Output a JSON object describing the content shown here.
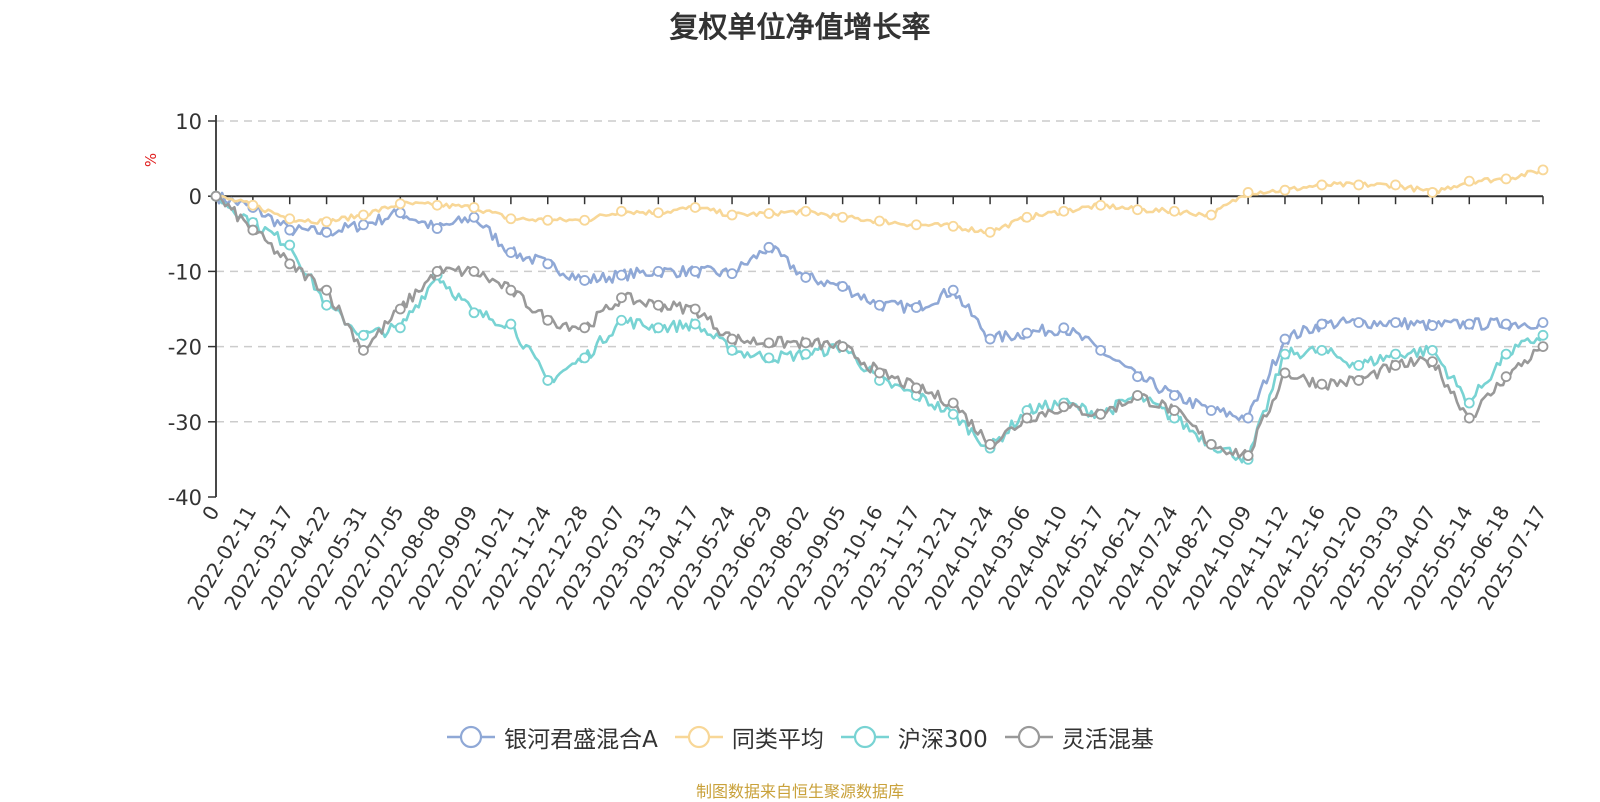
{
  "title": "复权单位净值增长率",
  "source_note": "制图数据来自恒生聚源数据库",
  "chart_data": {
    "type": "line",
    "title": "复权单位净值增长率",
    "ylabel": "%",
    "ylim": [
      -40,
      10
    ],
    "yticks": [
      10,
      0,
      -10,
      -20,
      -30,
      -40
    ],
    "grid": true,
    "legend_position": "bottom-center",
    "categories": [
      "0",
      "2022-02-11",
      "2022-03-17",
      "2022-04-22",
      "2022-05-31",
      "2022-07-05",
      "2022-08-08",
      "2022-09-09",
      "2022-10-21",
      "2022-11-24",
      "2022-12-28",
      "2023-02-07",
      "2023-03-13",
      "2023-04-17",
      "2023-05-24",
      "2023-06-29",
      "2023-08-02",
      "2023-09-05",
      "2023-10-16",
      "2023-11-17",
      "2023-12-21",
      "2024-01-24",
      "2024-03-06",
      "2024-04-10",
      "2024-05-17",
      "2024-06-21",
      "2024-07-24",
      "2024-08-27",
      "2024-10-09",
      "2024-11-12",
      "2024-12-16",
      "2025-01-20",
      "2025-03-03",
      "2025-04-07",
      "2025-05-14",
      "2025-06-18",
      "2025-07-17"
    ],
    "series": [
      {
        "name": "银河君盛混合A",
        "color": "#8fa8d6",
        "values": [
          0,
          -1.5,
          -4.5,
          -4.8,
          -3.8,
          -2.2,
          -4.3,
          -2.8,
          -7.5,
          -9.0,
          -11.2,
          -10.5,
          -10.0,
          -10.0,
          -10.3,
          -6.8,
          -10.8,
          -12.0,
          -14.5,
          -14.8,
          -12.5,
          -19.0,
          -18.2,
          -17.5,
          -20.5,
          -24.0,
          -26.5,
          -28.5,
          -29.5,
          -19.0,
          -17.0,
          -16.8,
          -16.8,
          -17.2,
          -17.0,
          -17.0,
          -16.8
        ]
      },
      {
        "name": "同类平均",
        "color": "#f8d797",
        "values": [
          0,
          -1.2,
          -3.0,
          -3.4,
          -2.5,
          -1.0,
          -1.2,
          -1.5,
          -3.0,
          -3.2,
          -3.2,
          -2.0,
          -2.2,
          -1.5,
          -2.5,
          -2.3,
          -2.0,
          -2.8,
          -3.3,
          -3.8,
          -4.0,
          -4.8,
          -2.8,
          -2.0,
          -1.2,
          -1.8,
          -2.0,
          -2.5,
          0.5,
          0.8,
          1.5,
          1.5,
          1.5,
          0.5,
          2.0,
          2.3,
          3.5
        ]
      },
      {
        "name": "沪深300",
        "color": "#78d3d3",
        "values": [
          0,
          -3.5,
          -6.5,
          -14.5,
          -18.5,
          -17.5,
          -10.5,
          -15.5,
          -17.0,
          -24.5,
          -21.5,
          -16.5,
          -17.5,
          -17.0,
          -20.5,
          -21.5,
          -21.0,
          -20.0,
          -24.5,
          -26.5,
          -29.0,
          -33.5,
          -28.5,
          -27.5,
          -29.0,
          -26.5,
          -29.5,
          -33.0,
          -35.0,
          -21.0,
          -20.5,
          -22.5,
          -21.0,
          -20.5,
          -27.5,
          -21.0,
          -18.5
        ]
      },
      {
        "name": "灵活混基",
        "color": "#999999",
        "values": [
          0,
          -4.5,
          -9.0,
          -12.5,
          -20.5,
          -15.0,
          -10.0,
          -10.0,
          -12.5,
          -16.5,
          -17.5,
          -13.5,
          -14.5,
          -15.0,
          -19.0,
          -19.5,
          -19.5,
          -20.0,
          -23.5,
          -25.5,
          -27.5,
          -33.0,
          -29.5,
          -28.0,
          -29.0,
          -26.5,
          -28.5,
          -33.0,
          -34.5,
          -23.5,
          -25.0,
          -24.5,
          -22.5,
          -22.0,
          -29.5,
          -24.0,
          -20.0
        ]
      }
    ]
  }
}
